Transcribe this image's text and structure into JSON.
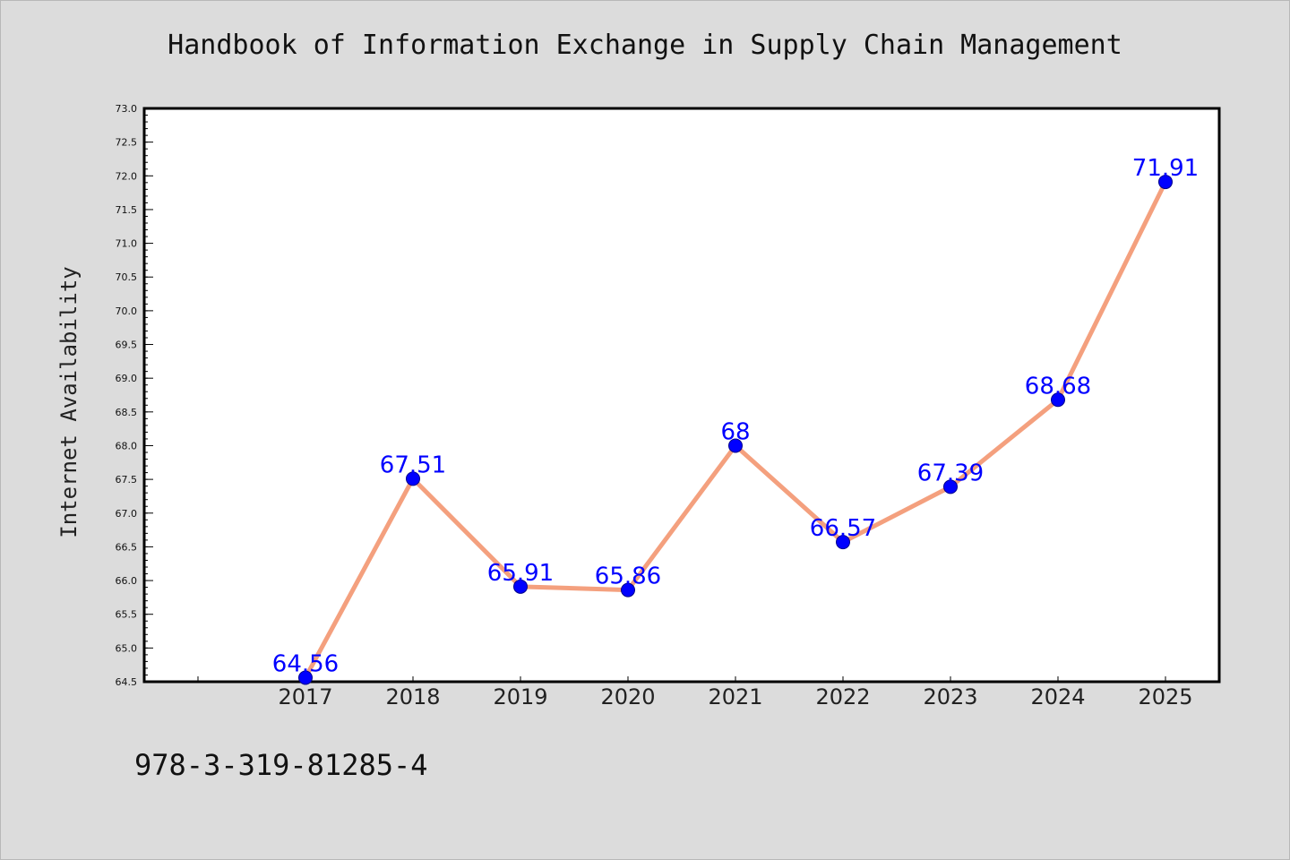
{
  "chart_data": {
    "type": "line",
    "title": "Handbook of Information Exchange in Supply Chain Management",
    "xlabel": "",
    "ylabel": "Internet Availability",
    "categories": [
      "2017",
      "2018",
      "2019",
      "2020",
      "2021",
      "2022",
      "2023",
      "2024",
      "2025"
    ],
    "series": [
      {
        "values": [
          64.56,
          67.51,
          65.91,
          65.86,
          68,
          66.57,
          67.39,
          68.68,
          71.91
        ],
        "labels": [
          "64.56",
          "67.51",
          "65.91",
          "65.86",
          "68",
          "66.57",
          "67.39",
          "68.68",
          "71.91"
        ]
      }
    ],
    "ylim": [
      64.5,
      73.0
    ],
    "yticks": [
      "64.5",
      "65.0",
      "65.5",
      "66.0",
      "66.5",
      "67.0",
      "67.5",
      "68.0",
      "68.5",
      "69.0",
      "69.5",
      "70.0",
      "70.5",
      "71.0",
      "71.5",
      "72.0",
      "72.5",
      "73.0"
    ],
    "grid": false,
    "line_color": "#f4a07e",
    "marker_color": "#0000ff",
    "label_color": "#0000ff"
  },
  "footer": {
    "isbn": "978-3-319-81285-4"
  }
}
